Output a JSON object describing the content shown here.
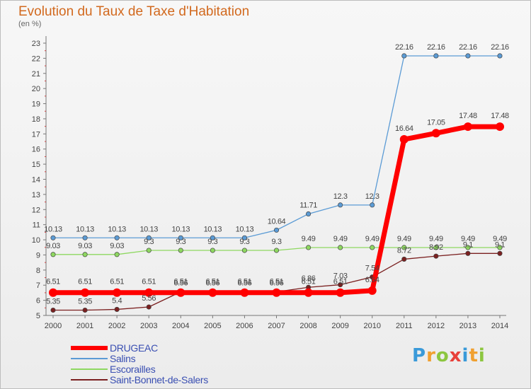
{
  "header": {
    "title": "Evolution du Taux de Taxe d'Habitation",
    "subtitle": "(en %)"
  },
  "logo": {
    "text": "Proxiti",
    "letters": [
      {
        "char": "P",
        "color": "#3a9ad9"
      },
      {
        "char": "r",
        "color": "#f0a030"
      },
      {
        "char": "o",
        "color": "#8cc63f"
      },
      {
        "char": "x",
        "color": "#e8403a"
      },
      {
        "char": "i",
        "color": "#3a9ad9"
      },
      {
        "char": "t",
        "color": "#f0a030"
      },
      {
        "char": "i",
        "color": "#8cc63f"
      }
    ]
  },
  "chart_data": {
    "type": "line",
    "title": "Evolution du Taux de Taxe d'Habitation",
    "subtitle": "(en %)",
    "xlabel": "",
    "ylabel": "",
    "x": [
      "2000",
      "2001",
      "2002",
      "2003",
      "2004",
      "2005",
      "2006",
      "2007",
      "2008",
      "2009",
      "2010",
      "2011",
      "2012",
      "2013",
      "2014"
    ],
    "yticks": [
      5,
      6,
      7,
      8,
      9,
      10,
      11,
      12,
      13,
      14,
      15,
      16,
      17,
      18,
      19,
      20,
      21,
      22,
      23
    ],
    "ylim": [
      5,
      23
    ],
    "grid": false,
    "legend": "bottom-left",
    "series": [
      {
        "name": "DRUGEAC",
        "color": "#ff0000",
        "values": [
          6.51,
          6.51,
          6.51,
          6.51,
          6.51,
          6.51,
          6.51,
          6.51,
          6.51,
          6.51,
          6.64,
          16.64,
          17.05,
          17.48,
          17.48
        ],
        "labels": [
          "6.51",
          "6.51",
          "6.51",
          "6.51",
          "6.51",
          "6.51",
          "6.51",
          "6.51",
          "6.51",
          "6.51",
          "6.64",
          "16.64",
          "17.05",
          "17.48",
          "17.48"
        ]
      },
      {
        "name": "Salins",
        "color": "#5b9bd5",
        "values": [
          10.13,
          10.13,
          10.13,
          10.13,
          10.13,
          10.13,
          10.13,
          10.64,
          11.71,
          12.3,
          12.3,
          22.16,
          22.16,
          22.16,
          22.16
        ],
        "labels": [
          "10.13",
          "10.13",
          "10.13",
          "10.13",
          "10.13",
          "10.13",
          "10.13",
          "10.64",
          "11.71",
          "12.3",
          "12.3",
          "22.16",
          "22.16",
          "22.16",
          "22.16"
        ]
      },
      {
        "name": "Escorailles",
        "color": "#8ed860",
        "values": [
          9.03,
          9.03,
          9.03,
          9.3,
          9.3,
          9.3,
          9.3,
          9.3,
          9.49,
          9.49,
          9.49,
          9.49,
          9.49,
          9.49,
          9.49
        ],
        "labels": [
          "9.03",
          "9.03",
          "9.03",
          "9.3",
          "9.3",
          "9.3",
          "9.3",
          "9.3",
          "9.49",
          "9.49",
          "9.49",
          "9.49",
          "9.49",
          "9.49",
          "9.49"
        ]
      },
      {
        "name": "Saint-Bonnet-de-Salers",
        "color": "#7b2020",
        "values": [
          5.35,
          5.35,
          5.4,
          5.56,
          6.56,
          6.56,
          6.56,
          6.56,
          6.86,
          7.03,
          7.54,
          8.72,
          8.92,
          9.1,
          9.1
        ],
        "labels": [
          "5.35",
          "5.35",
          "5.4",
          "5.56",
          "6.56",
          "6.56",
          "6.56",
          "6.56",
          "6.86",
          "7.03",
          "7.54",
          "8.72",
          "8.92",
          "9.1",
          "9.1"
        ]
      }
    ]
  }
}
